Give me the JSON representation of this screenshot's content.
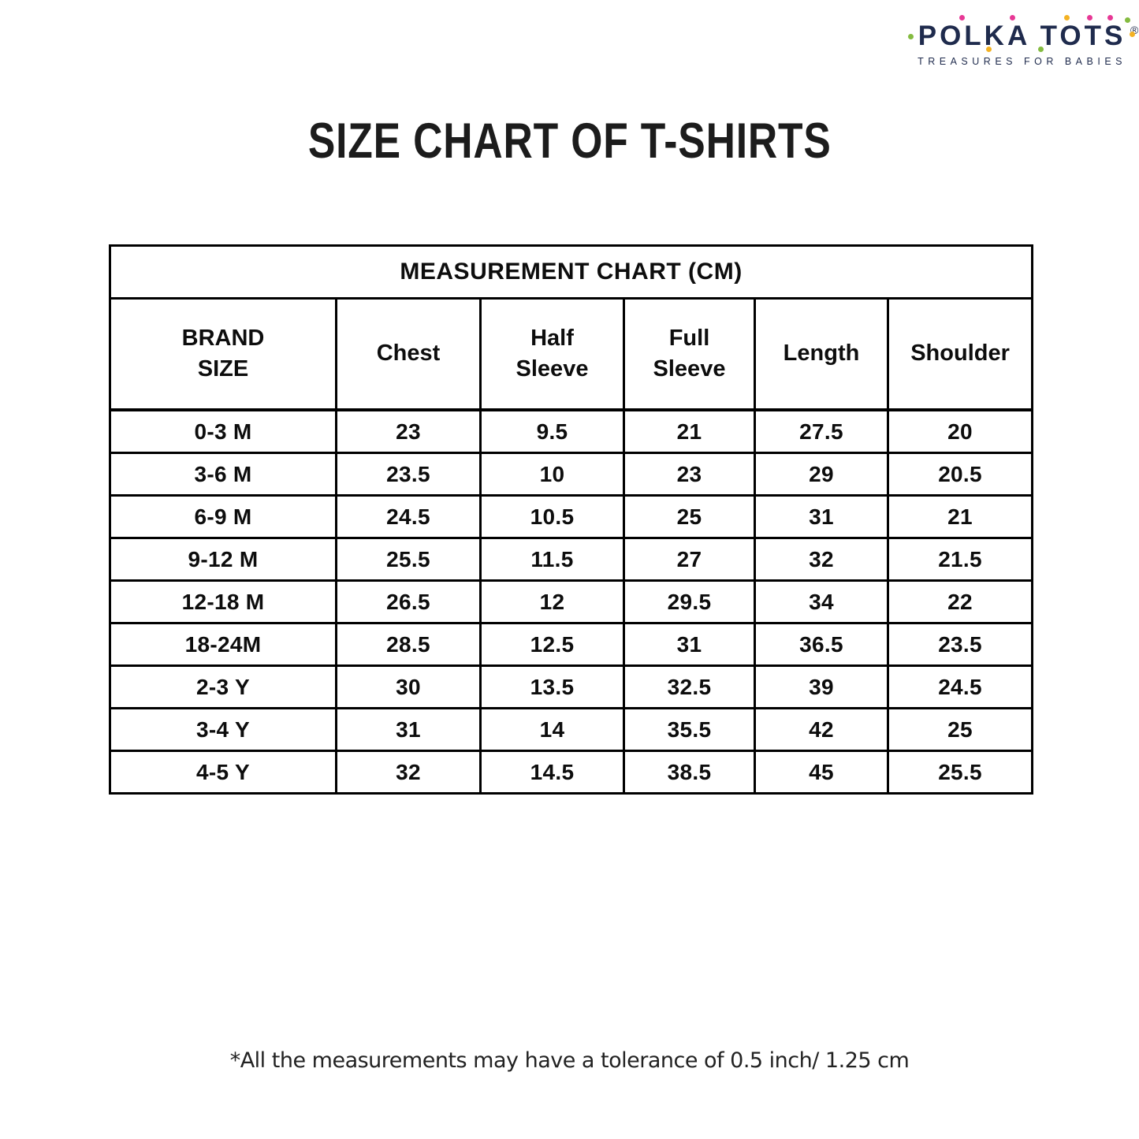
{
  "logo": {
    "brand": "POLKA TOTS",
    "registered": "®",
    "tagline": "TREASURES FOR BABIES",
    "colors": {
      "navy": "#1f2b4d",
      "pink": "#e73895",
      "green": "#84bb40",
      "yellow": "#f4b223"
    }
  },
  "page_title": "SIZE CHART OF T-SHIRTS",
  "chart_data": {
    "type": "table",
    "title": "MEASUREMENT CHART (CM)",
    "columns": [
      "BRAND\nSIZE",
      "Chest",
      "Half\nSleeve",
      "Full\nSleeve",
      "Length",
      "Shoulder"
    ],
    "rows": [
      [
        "0-3 M",
        "23",
        "9.5",
        "21",
        "27.5",
        "20"
      ],
      [
        "3-6 M",
        "23.5",
        "10",
        "23",
        "29",
        "20.5"
      ],
      [
        "6-9 M",
        "24.5",
        "10.5",
        "25",
        "31",
        "21"
      ],
      [
        "9-12 M",
        "25.5",
        "11.5",
        "27",
        "32",
        "21.5"
      ],
      [
        "12-18 M",
        "26.5",
        "12",
        "29.5",
        "34",
        "22"
      ],
      [
        "18-24M",
        "28.5",
        "12.5",
        "31",
        "36.5",
        "23.5"
      ],
      [
        "2-3 Y",
        "30",
        "13.5",
        "32.5",
        "39",
        "24.5"
      ],
      [
        "3-4 Y",
        "31",
        "14",
        "35.5",
        "42",
        "25"
      ],
      [
        "4-5 Y",
        "32",
        "14.5",
        "38.5",
        "45",
        "25.5"
      ]
    ]
  },
  "footnote": "*All the measurements may have a tolerance of 0.5 inch/ 1.25 cm"
}
